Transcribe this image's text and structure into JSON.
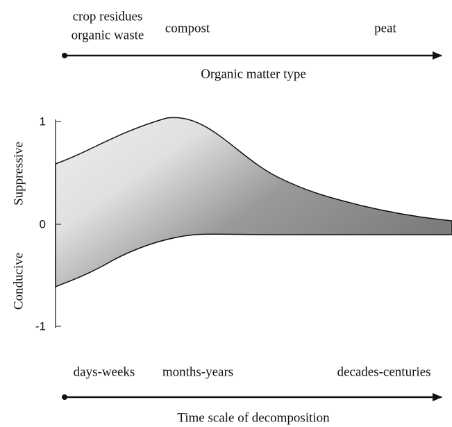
{
  "top_axis": {
    "labels": [
      "crop residues",
      "organic waste",
      "compost",
      "peat"
    ],
    "title": "Organic matter type"
  },
  "plot": {
    "yticks": [
      1,
      0,
      -1
    ],
    "ylabels": [
      "Suppressive",
      "Conducive"
    ]
  },
  "bottom_axis": {
    "labels": [
      "days-weeks",
      "months-years",
      "decades-centuries"
    ],
    "title": "Time scale of decomposition"
  }
}
